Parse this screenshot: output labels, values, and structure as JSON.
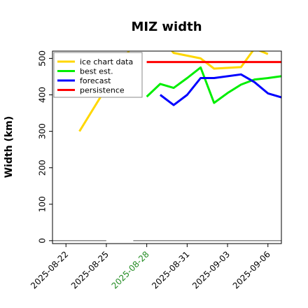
{
  "chart_data": {
    "type": "line",
    "title": "MIZ width",
    "xlabel": "",
    "ylabel": "Width (km)",
    "ylim": [
      -8,
      520
    ],
    "xlim": [
      "2025-08-21",
      "2025-09-07"
    ],
    "x_tick_labels": [
      "2025-08-22",
      "2025-08-25",
      "2025-08-28",
      "2025-08-31",
      "2025-09-03",
      "2025-09-06"
    ],
    "highlighted_x_tick": "2025-08-28",
    "highlight_color": "#228b22",
    "y_ticks": [
      0,
      100,
      200,
      300,
      400,
      500
    ],
    "legend_position": "upper-left",
    "grid": false,
    "series": [
      {
        "name": "ice chart data",
        "color": "#ffd700",
        "points": [
          {
            "x": "2025-08-23",
            "y": 300
          },
          {
            "x": "2025-08-28",
            "y": 600
          },
          {
            "x": "2025-08-30",
            "y": 515
          },
          {
            "x": "2025-09-01",
            "y": 500
          },
          {
            "x": "2025-09-02",
            "y": 472
          },
          {
            "x": "2025-09-04",
            "y": 476
          },
          {
            "x": "2025-09-05",
            "y": 527
          },
          {
            "x": "2025-09-06",
            "y": 512
          }
        ]
      },
      {
        "name": "best est.",
        "color": "#00ee00",
        "points": [
          {
            "x": "2025-08-28",
            "y": 395
          },
          {
            "x": "2025-08-29",
            "y": 430
          },
          {
            "x": "2025-08-30",
            "y": 419
          },
          {
            "x": "2025-08-31",
            "y": 446
          },
          {
            "x": "2025-09-01",
            "y": 475
          },
          {
            "x": "2025-09-02",
            "y": 378
          },
          {
            "x": "2025-09-03",
            "y": 405
          },
          {
            "x": "2025-09-04",
            "y": 428
          },
          {
            "x": "2025-09-05",
            "y": 442
          },
          {
            "x": "2025-09-06",
            "y": 446
          },
          {
            "x": "2025-09-07",
            "y": 451
          }
        ]
      },
      {
        "name": "forecast",
        "color": "#0000ff",
        "points": [
          {
            "x": "2025-08-29",
            "y": 400
          },
          {
            "x": "2025-08-30",
            "y": 372
          },
          {
            "x": "2025-08-31",
            "y": 400
          },
          {
            "x": "2025-09-01",
            "y": 446
          },
          {
            "x": "2025-09-02",
            "y": 446
          },
          {
            "x": "2025-09-04",
            "y": 456
          },
          {
            "x": "2025-09-05",
            "y": 435
          },
          {
            "x": "2025-09-06",
            "y": 404
          },
          {
            "x": "2025-09-07",
            "y": 393
          }
        ]
      },
      {
        "name": "persistence",
        "color": "#ff0000",
        "points": [
          {
            "x": "2025-08-28",
            "y": 490
          },
          {
            "x": "2025-09-07",
            "y": 490
          }
        ]
      },
      {
        "color": "#888888",
        "points": [
          {
            "x": "2025-08-21",
            "y": 0
          },
          {
            "x": "2025-08-25",
            "y": 0
          }
        ]
      },
      {
        "color": "#888888",
        "points": [
          {
            "x": "2025-08-27",
            "y": 0
          },
          {
            "x": "2025-09-07",
            "y": 0
          }
        ]
      }
    ]
  }
}
